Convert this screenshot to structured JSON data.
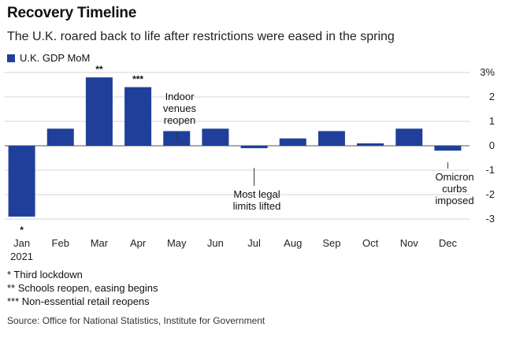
{
  "title": "Recovery Timeline",
  "subtitle": "The U.K. roared back to life after restrictions were eased in the spring",
  "legend": {
    "label": "U.K. GDP MoM",
    "color": "#1f3f9a"
  },
  "chart_data": {
    "type": "bar",
    "categories": [
      "Jan",
      "Feb",
      "Mar",
      "Apr",
      "May",
      "Jun",
      "Jul",
      "Aug",
      "Sep",
      "Oct",
      "Nov",
      "Dec"
    ],
    "category_sublabels": [
      "2021",
      "",
      "",
      "",
      "",
      "",
      "",
      "",
      "",
      "",
      "",
      ""
    ],
    "series": [
      {
        "name": "U.K. GDP MoM",
        "color": "#1f3f9a",
        "values": [
          -2.9,
          0.7,
          2.8,
          2.4,
          0.6,
          0.7,
          -0.1,
          0.3,
          0.6,
          0.1,
          0.7,
          -0.2
        ]
      }
    ],
    "ylim": [
      -3,
      3
    ],
    "yticks": [
      3,
      2,
      1,
      0,
      -1,
      -2,
      -3
    ],
    "ytick_labels": [
      "3%",
      "2",
      "1",
      "0",
      "-1",
      "-2",
      "-3"
    ],
    "grid": true,
    "bar_markers": [
      {
        "category": "Jan",
        "text": "*"
      },
      {
        "category": "Mar",
        "text": "**"
      },
      {
        "category": "Apr",
        "text": "***"
      }
    ],
    "annotations": [
      {
        "category": "May",
        "lines": [
          "Indoor",
          "venues",
          "reopen"
        ]
      },
      {
        "category": "Jul",
        "lines": [
          "Most legal",
          "limits lifted"
        ]
      },
      {
        "category": "Dec",
        "lines": [
          "Omicron",
          "curbs",
          "imposed"
        ]
      }
    ]
  },
  "footnotes": [
    "* Third lockdown",
    "** Schools reopen, easing begins",
    "*** Non-essential retail reopens"
  ],
  "source": "Source: Office for National Statistics, Institute for Government"
}
